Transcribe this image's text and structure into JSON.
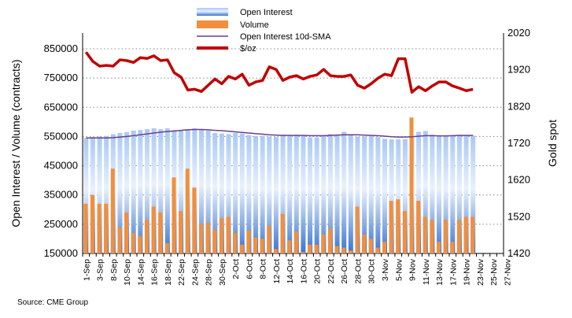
{
  "chart_data": {
    "type": "bar+line",
    "title": "",
    "source": "Source: CME Group",
    "ylabel_left": "Open Interest / Volume (contracts)",
    "ylabel_right": "Gold spot",
    "ylim_left": [
      150000,
      850000
    ],
    "yticks_left": [
      "150000",
      "250000",
      "350000",
      "450000",
      "550000",
      "650000",
      "750000",
      "850000"
    ],
    "ylim_right": [
      1420,
      2020
    ],
    "yticks_right": [
      "1420",
      "1520",
      "1620",
      "1720",
      "1820",
      "1920",
      "2020"
    ],
    "grid": "horizontal-dotted",
    "legend_position": "top-center",
    "legend": [
      "Open Interest",
      "Volume",
      "Open Interest 10d-SMA",
      "$/oz"
    ],
    "colors": {
      "open_interest": "#6c9be6",
      "volume": "#f28e3c",
      "sma": "#6a3d8f",
      "gold": "#c00000"
    },
    "x_labels": [
      "1-Sep",
      "3-Sep",
      "8-Sep",
      "10-Sep",
      "14-Sep",
      "16-Sep",
      "18-Sep",
      "22-Sep",
      "24-Sep",
      "28-Sep",
      "30-Sep",
      "2-Oct",
      "6-Oct",
      "8-Oct",
      "12-Oct",
      "14-Oct",
      "16-Oct",
      "20-Oct",
      "22-Oct",
      "26-Oct",
      "28-Oct",
      "30-Oct",
      "3-Nov",
      "5-Nov",
      "9-Nov",
      "11-Nov",
      "13-Nov",
      "17-Nov",
      "19-Nov",
      "23-Nov",
      "25-Nov",
      "27-Nov"
    ],
    "total_slots": 62,
    "series": [
      {
        "name": "Open Interest",
        "type": "bar",
        "values": [
          545000,
          548000,
          550000,
          552000,
          558000,
          562000,
          565000,
          570000,
          572000,
          575000,
          578000,
          575000,
          578000,
          572000,
          570000,
          575000,
          578000,
          575000,
          570000,
          562000,
          560000,
          558000,
          562000,
          560000,
          555000,
          552000,
          552000,
          550000,
          548000,
          556000,
          553000,
          556000,
          552000,
          547000,
          547000,
          552000,
          558000,
          556000,
          566000,
          556000,
          550000,
          550000,
          552000,
          548000,
          542000,
          540000,
          540000,
          541000,
          546000,
          566000,
          569000,
          556000,
          552000,
          550000,
          552000,
          553000,
          553000,
          553000
        ]
      },
      {
        "name": "Volume",
        "type": "bar",
        "values": [
          320000,
          350000,
          320000,
          320000,
          440000,
          240000,
          290000,
          220000,
          210000,
          265000,
          310000,
          290000,
          185000,
          410000,
          295000,
          440000,
          375000,
          250000,
          255000,
          230000,
          270000,
          275000,
          220000,
          180000,
          230000,
          205000,
          200000,
          245000,
          165000,
          285000,
          195000,
          225000,
          155000,
          180000,
          180000,
          215000,
          235000,
          175000,
          170000,
          160000,
          310000,
          215000,
          200000,
          170000,
          190000,
          330000,
          335000,
          295000,
          615000,
          330000,
          275000,
          265000,
          190000,
          265000,
          190000,
          265000,
          275000,
          275000
        ]
      },
      {
        "name": "Open Interest 10d-SMA",
        "type": "line",
        "values": [
          545000,
          545000,
          545000,
          545000,
          546000,
          548000,
          550000,
          553000,
          556000,
          559000,
          562000,
          565000,
          567000,
          569000,
          571000,
          573000,
          574000,
          574000,
          573000,
          571000,
          570000,
          568000,
          566000,
          564000,
          562000,
          560000,
          558000,
          556000,
          555000,
          554000,
          554000,
          554000,
          554000,
          553000,
          553000,
          553000,
          554000,
          555000,
          556000,
          556000,
          556000,
          555000,
          554000,
          553000,
          551000,
          549000,
          548000,
          548000,
          549000,
          551000,
          553000,
          553000,
          552000,
          552000,
          553000,
          554000,
          554000,
          554000
        ]
      },
      {
        "name": "$/oz",
        "type": "line",
        "axis": "right",
        "values": [
          1968,
          1943,
          1930,
          1932,
          1930,
          1947,
          1945,
          1940,
          1953,
          1951,
          1958,
          1945,
          1947,
          1912,
          1900,
          1865,
          1867,
          1861,
          1878,
          1895,
          1882,
          1902,
          1895,
          1908,
          1878,
          1887,
          1891,
          1928,
          1921,
          1891,
          1900,
          1904,
          1895,
          1902,
          1906,
          1921,
          1904,
          1902,
          1902,
          1906,
          1878,
          1870,
          1882,
          1897,
          1908,
          1904,
          1950,
          1950,
          1859,
          1874,
          1863,
          1876,
          1887,
          1887,
          1876,
          1870,
          1863,
          1867
        ]
      }
    ]
  }
}
